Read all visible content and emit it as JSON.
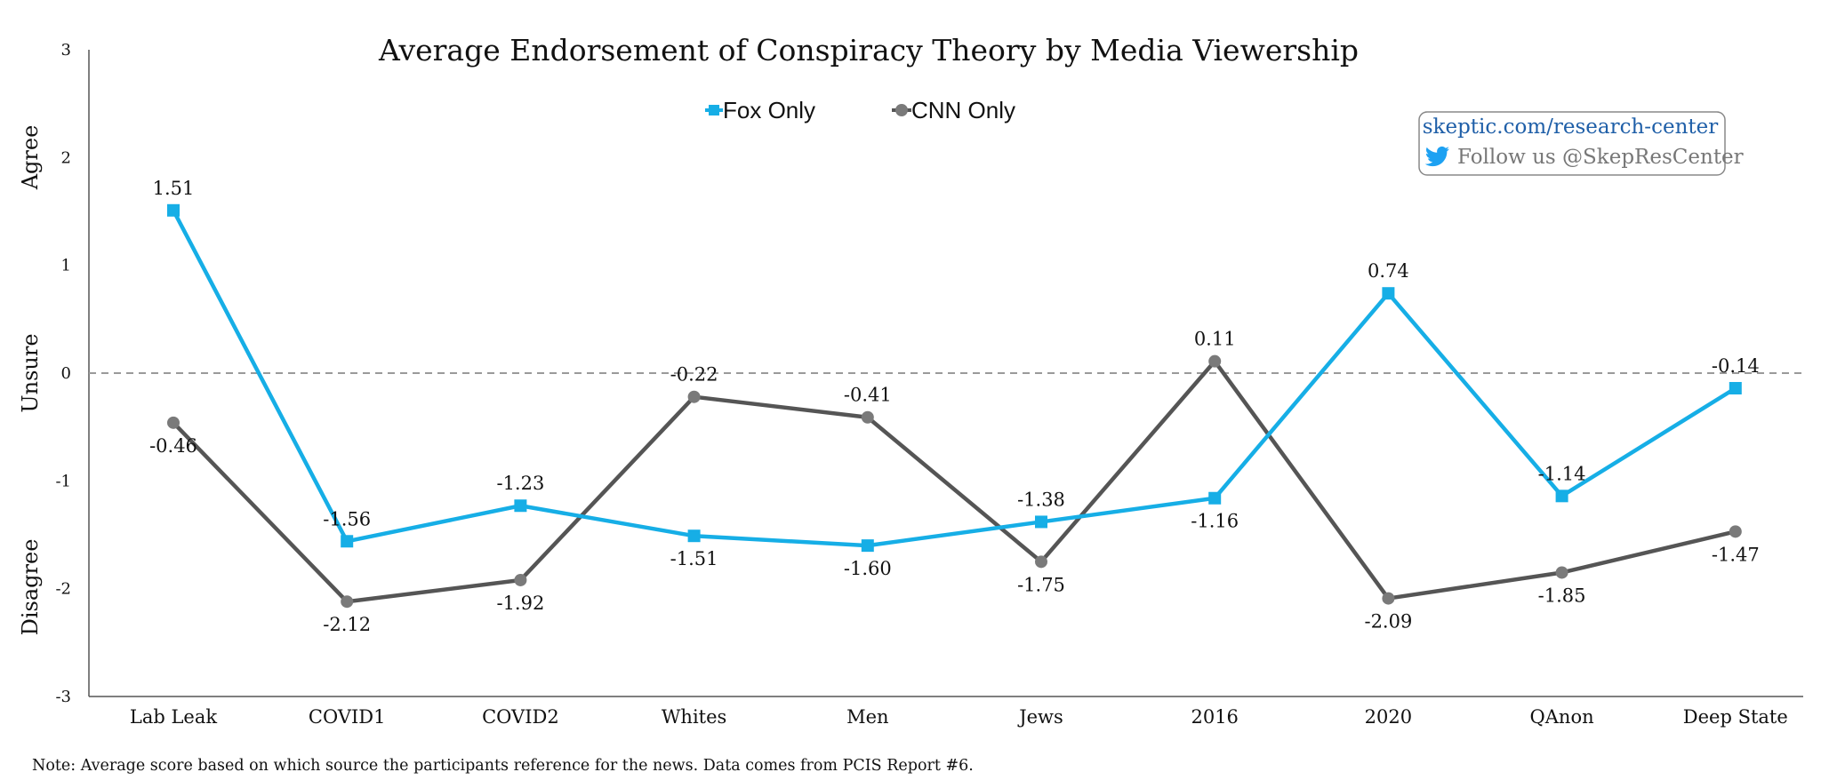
{
  "chart_data": {
    "type": "line",
    "title": "Average Endorsement of Conspiracy Theory by Media Viewership",
    "categories": [
      "Lab Leak",
      "COVID1",
      "COVID2",
      "Whites",
      "Men",
      "Jews",
      "2016",
      "2020",
      "QAnon",
      "Deep State"
    ],
    "series": [
      {
        "name": "Fox Only",
        "color": "#16aee6",
        "marker": "square",
        "values": [
          1.51,
          -1.56,
          -1.23,
          -1.51,
          -1.6,
          -1.38,
          -1.16,
          0.74,
          -1.14,
          -0.14
        ],
        "labels": [
          "1.51",
          "-1.56",
          "-1.23",
          "-1.51",
          "-1.60",
          "-1.38",
          "-1.16",
          "0.74",
          "-1.14",
          "-0.14"
        ]
      },
      {
        "name": "CNN Only",
        "color": "#555555",
        "marker_color": "#7a7a7a",
        "marker": "circle",
        "values": [
          -0.46,
          -2.12,
          -1.92,
          -0.22,
          -0.41,
          -1.75,
          0.11,
          -2.09,
          -1.85,
          -1.47
        ],
        "labels": [
          "-0.46",
          "-2.12",
          "-1.92",
          "-0.22",
          "-0.41",
          "-1.75",
          "0.11",
          "-2.09",
          "-1.85",
          "-1.47"
        ]
      }
    ],
    "ylim": [
      -3,
      3
    ],
    "yticks": [
      "3",
      "2",
      "1",
      "0",
      "-1",
      "-2",
      "-3"
    ],
    "ylabels_side": [
      "Agree",
      "Unsure",
      "Disagree"
    ],
    "xlabel": "",
    "ylabel": "",
    "reference_line": {
      "y": 0,
      "style": "dashed",
      "color": "#9a9a9a"
    },
    "grid": false,
    "legend_position": "top-center",
    "note": "Note: Average score based on which source the participants reference for the news. Data comes from PCIS Report #6."
  },
  "branding": {
    "url": "skeptic.com/research-center",
    "follow": "Follow us @SkepResCenter",
    "icon": "twitter-bird-icon",
    "url_color": "#1f5fa8",
    "border_color": "#888888"
  }
}
